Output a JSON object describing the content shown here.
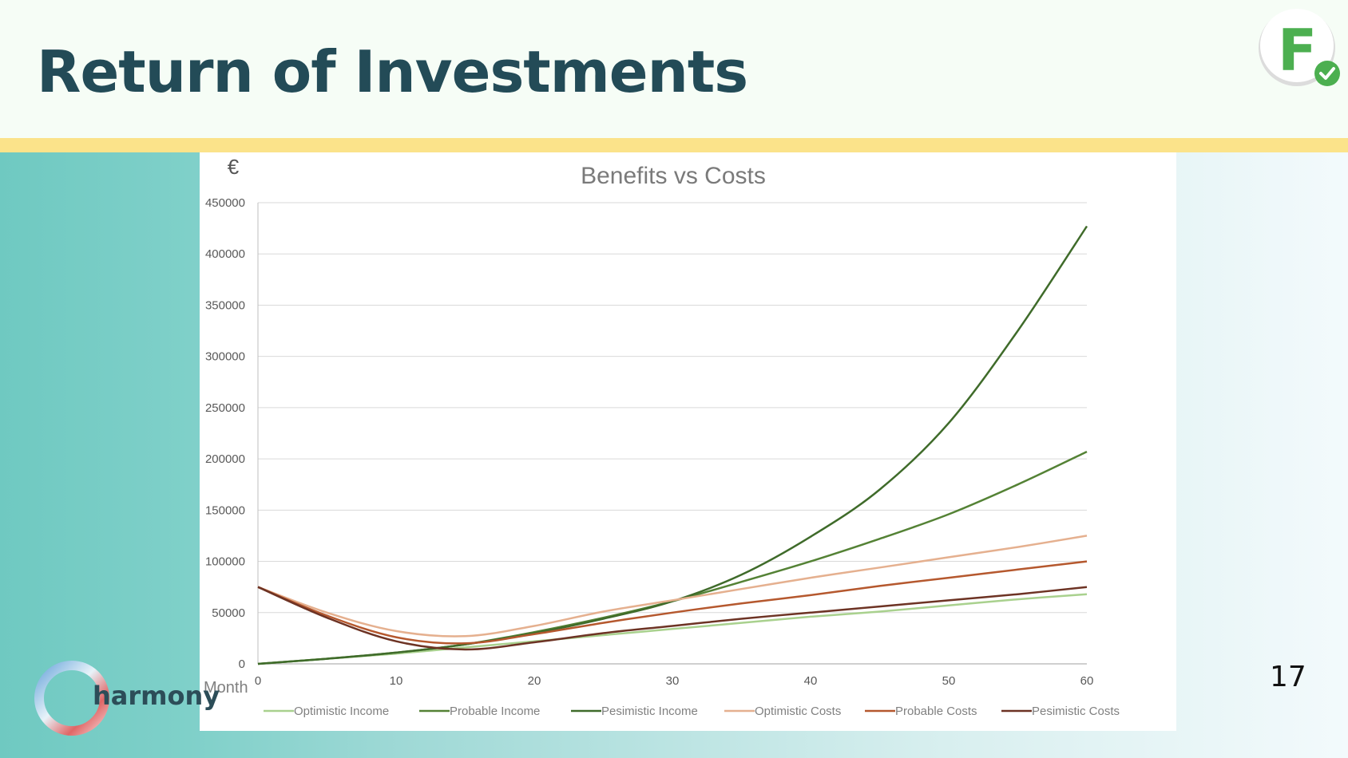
{
  "slide": {
    "title": "Return of Investments",
    "page_number": "17",
    "logo_text": "harmony",
    "badge_letter": "F",
    "colors": {
      "title": "#234b57",
      "header_bg": "#f6fdf6",
      "band": "#fbe38a",
      "badge_letter": "#4caf50",
      "badge_check": "#4caf50"
    },
    "icons": {
      "badge": "f-check-badge-icon",
      "logo": "ring-logo-icon"
    }
  },
  "chart_data": {
    "type": "line",
    "title": "Benefits vs Costs",
    "ylabel": "€",
    "xlabel": "Month",
    "xlim": [
      0,
      60
    ],
    "ylim": [
      0,
      450000
    ],
    "xticks": [
      0,
      10,
      20,
      30,
      40,
      50,
      60
    ],
    "yticks": [
      0,
      50000,
      100000,
      150000,
      200000,
      250000,
      300000,
      350000,
      400000,
      450000
    ],
    "grid": true,
    "legend_position": "bottom",
    "x": [
      0,
      5,
      10,
      15,
      20,
      25,
      30,
      35,
      40,
      45,
      50,
      55,
      60
    ],
    "series": [
      {
        "name": "Optimistic Income",
        "color": "#a9d18e",
        "values": [
          0,
          5000,
          10000,
          16000,
          22000,
          28000,
          34000,
          40000,
          46000,
          51000,
          57000,
          63000,
          68000
        ]
      },
      {
        "name": "Probable Income",
        "color": "#548235",
        "values": [
          0,
          5000,
          11000,
          19000,
          31000,
          45000,
          61000,
          80000,
          100000,
          122000,
          146000,
          175000,
          207000
        ]
      },
      {
        "name": "Pesimistic Income",
        "color": "#3f6b2a",
        "values": [
          0,
          5000,
          11000,
          19000,
          30000,
          44000,
          61000,
          87000,
          124000,
          170000,
          235000,
          325000,
          427000
        ]
      },
      {
        "name": "Optimistic Costs",
        "color": "#e5b08f",
        "values": [
          75000,
          50000,
          32000,
          27000,
          37000,
          51000,
          62000,
          73000,
          84000,
          94000,
          104000,
          114000,
          125000
        ]
      },
      {
        "name": "Probable Costs",
        "color": "#b5582e",
        "values": [
          75000,
          47000,
          26000,
          20000,
          29000,
          40000,
          50000,
          59000,
          67000,
          76000,
          84000,
          92000,
          100000
        ]
      },
      {
        "name": "Pesimistic Costs",
        "color": "#6d3324",
        "values": [
          75000,
          45000,
          22000,
          14000,
          21000,
          30000,
          37000,
          44000,
          50000,
          56000,
          62000,
          68000,
          75000
        ]
      }
    ]
  }
}
